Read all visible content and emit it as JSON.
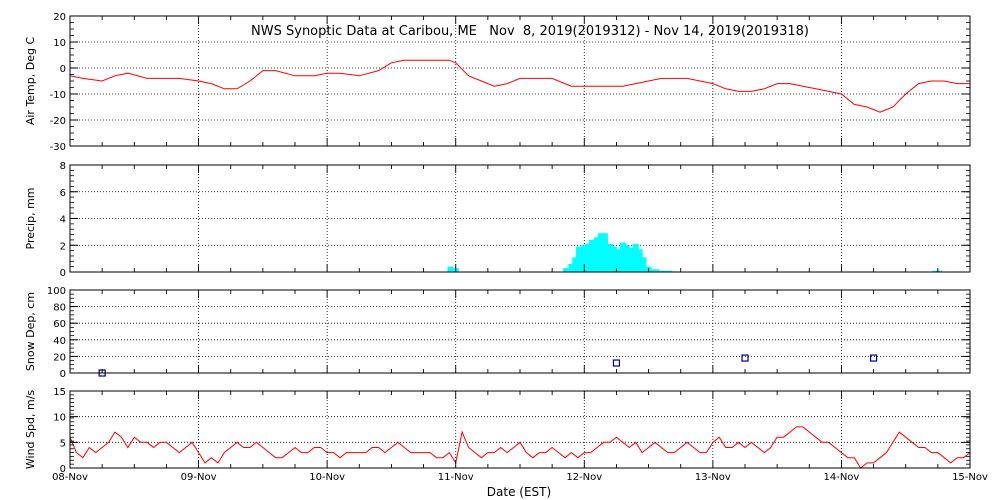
{
  "title": "NWS Synoptic Data at Caribou, ME   Nov  8, 2019(2019312) - Nov 14, 2019(2019318)",
  "xlabel": "Date (EST)",
  "x_ticks": [
    "08-Nov",
    "09-Nov",
    "10-Nov",
    "11-Nov",
    "12-Nov",
    "13-Nov",
    "14-Nov",
    "15-Nov"
  ],
  "colors": {
    "temp": "#ff0000",
    "precip": "#00ffff",
    "snow": "#000080",
    "wind": "#ff0000",
    "axis": "#000000"
  },
  "chart_data": [
    {
      "type": "line",
      "ylabel": "Air Temp, Deg C",
      "ylim": [
        -30,
        20
      ],
      "yticks": [
        -30,
        -20,
        -10,
        0,
        10,
        20
      ],
      "grid": true,
      "series": [
        {
          "x_days": [
            0,
            0.1,
            0.25,
            0.35,
            0.45,
            0.6,
            0.75,
            0.85,
            1.0,
            1.1,
            1.2,
            1.3,
            1.4,
            1.5,
            1.6,
            1.75,
            1.9,
            2.0,
            2.1,
            2.25,
            2.4,
            2.5,
            2.6,
            2.7,
            2.8,
            2.9,
            2.95,
            3.0,
            3.1,
            3.2,
            3.3,
            3.4,
            3.5,
            3.6,
            3.75,
            3.9,
            4.0,
            4.15,
            4.3,
            4.4,
            4.5,
            4.6,
            4.7,
            4.8,
            4.9,
            5.0,
            5.1,
            5.2,
            5.3,
            5.4,
            5.5,
            5.6,
            5.7,
            5.8,
            5.9,
            6.0,
            6.1,
            6.2,
            6.3,
            6.4,
            6.5,
            6.6,
            6.7,
            6.8,
            6.9,
            7.0
          ],
          "values": [
            -3,
            -4,
            -5,
            -3,
            -2,
            -4,
            -4,
            -4,
            -5,
            -6,
            -8,
            -8,
            -5,
            -1,
            -1,
            -3,
            -3,
            -2,
            -2,
            -3,
            -1,
            2,
            3,
            3,
            3,
            3,
            3,
            2,
            -3,
            -5,
            -7,
            -6,
            -4,
            -4,
            -4,
            -7,
            -7,
            -7,
            -7,
            -6,
            -5,
            -4,
            -4,
            -4,
            -5,
            -6,
            -8,
            -9,
            -9,
            -8,
            -6,
            -6,
            -7,
            -8,
            -9,
            -10,
            -14,
            -15,
            -17,
            -15,
            -10,
            -6,
            -5,
            -5,
            -6,
            -6
          ]
        }
      ]
    },
    {
      "type": "bar",
      "ylabel": "Precip, mm",
      "ylim": [
        0,
        8
      ],
      "yticks": [
        0,
        2,
        4,
        6,
        8
      ],
      "grid": true,
      "series": [
        {
          "x_days": [
            2.96,
            3.0,
            3.86,
            3.9,
            3.93,
            3.96,
            4.0,
            4.03,
            4.06,
            4.1,
            4.13,
            4.16,
            4.2,
            4.23,
            4.26,
            4.3,
            4.33,
            4.36,
            4.4,
            4.43,
            4.46,
            4.5,
            4.53,
            4.56,
            4.6,
            4.63,
            4.66,
            4.7,
            6.73,
            6.76
          ],
          "values": [
            0.4,
            0.3,
            0.3,
            0.6,
            1.1,
            1.9,
            2.0,
            2.1,
            2.4,
            2.6,
            2.9,
            2.9,
            2.1,
            1.9,
            1.7,
            2.2,
            2.0,
            1.8,
            2.1,
            1.7,
            1.1,
            0.4,
            0.2,
            0.2,
            0.1,
            0.1,
            0.1,
            0.05,
            0.1,
            0.1
          ]
        }
      ]
    },
    {
      "type": "scatter",
      "ylabel": "Snow Dep, cm",
      "ylim": [
        0,
        100
      ],
      "yticks": [
        0,
        20,
        40,
        60,
        80,
        100
      ],
      "grid": true,
      "series": [
        {
          "x_days": [
            0.25,
            4.25,
            5.25,
            6.25
          ],
          "values": [
            0,
            12,
            18,
            18
          ]
        }
      ]
    },
    {
      "type": "line",
      "ylabel": "Wind Spd, m/s",
      "ylim": [
        0,
        15
      ],
      "yticks": [
        0,
        5,
        10,
        15
      ],
      "grid": true,
      "series": [
        {
          "x_days": [
            0,
            0.05,
            0.1,
            0.15,
            0.2,
            0.25,
            0.3,
            0.35,
            0.4,
            0.45,
            0.5,
            0.55,
            0.6,
            0.65,
            0.7,
            0.75,
            0.8,
            0.85,
            0.9,
            0.95,
            1.0,
            1.05,
            1.1,
            1.15,
            1.2,
            1.25,
            1.3,
            1.35,
            1.4,
            1.45,
            1.5,
            1.55,
            1.6,
            1.65,
            1.7,
            1.75,
            1.8,
            1.85,
            1.9,
            1.95,
            2.0,
            2.05,
            2.1,
            2.15,
            2.2,
            2.25,
            2.3,
            2.35,
            2.4,
            2.45,
            2.5,
            2.55,
            2.6,
            2.65,
            2.7,
            2.75,
            2.8,
            2.85,
            2.9,
            2.95,
            3.0,
            3.05,
            3.1,
            3.15,
            3.2,
            3.25,
            3.3,
            3.35,
            3.4,
            3.45,
            3.5,
            3.55,
            3.6,
            3.65,
            3.7,
            3.75,
            3.8,
            3.85,
            3.9,
            3.95,
            4.0,
            4.05,
            4.1,
            4.15,
            4.2,
            4.25,
            4.3,
            4.35,
            4.4,
            4.45,
            4.5,
            4.55,
            4.6,
            4.65,
            4.7,
            4.75,
            4.8,
            4.85,
            4.9,
            4.95,
            5.0,
            5.05,
            5.1,
            5.15,
            5.2,
            5.25,
            5.3,
            5.35,
            5.4,
            5.45,
            5.5,
            5.55,
            5.6,
            5.65,
            5.7,
            5.75,
            5.8,
            5.85,
            5.9,
            5.95,
            6.0,
            6.05,
            6.1,
            6.15,
            6.2,
            6.25,
            6.3,
            6.35,
            6.4,
            6.45,
            6.5,
            6.55,
            6.6,
            6.65,
            6.7,
            6.75,
            6.8,
            6.85,
            6.9,
            6.95,
            7.0
          ],
          "values": [
            6,
            3,
            2,
            4,
            3,
            4,
            5,
            7,
            6,
            4,
            6,
            5,
            5,
            4,
            5,
            5,
            4,
            3,
            4,
            5,
            3,
            1,
            2,
            1,
            3,
            4,
            5,
            4,
            4,
            5,
            4,
            3,
            2,
            2,
            3,
            4,
            3,
            3,
            4,
            4,
            3,
            3,
            2,
            3,
            3,
            3,
            3,
            4,
            4,
            3,
            4,
            5,
            4,
            3,
            3,
            3,
            3,
            2,
            2,
            3,
            1,
            7,
            4,
            3,
            2,
            3,
            3,
            4,
            3,
            4,
            5,
            3,
            2,
            3,
            3,
            4,
            3,
            2,
            3,
            2,
            3,
            3,
            4,
            5,
            5,
            6,
            5,
            4,
            5,
            3,
            4,
            5,
            4,
            3,
            3,
            4,
            5,
            4,
            3,
            3,
            5,
            6,
            4,
            4,
            5,
            4,
            5,
            4,
            3,
            4,
            6,
            6,
            7,
            8,
            8,
            7,
            6,
            5,
            5,
            4,
            3,
            2,
            2,
            0,
            1,
            1,
            2,
            3,
            5,
            7,
            6,
            5,
            4,
            4,
            3,
            3,
            2,
            1,
            2,
            2,
            3
          ]
        }
      ]
    }
  ]
}
